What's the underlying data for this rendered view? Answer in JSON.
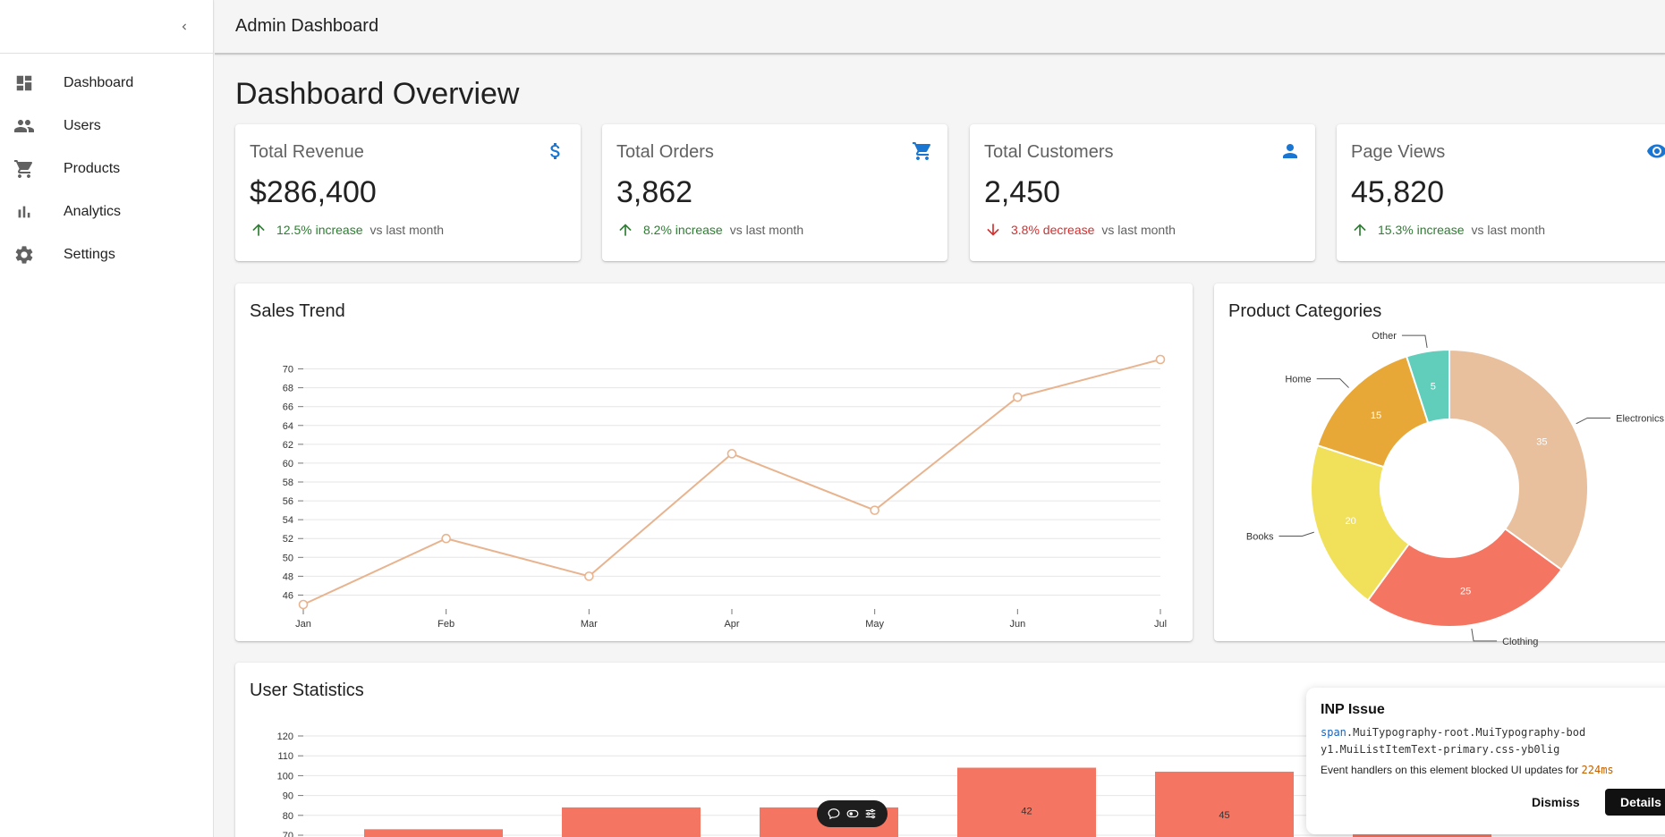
{
  "appbar": {
    "title": "Admin Dashboard"
  },
  "sidebar": {
    "collapse_icon": "chevron-left-icon",
    "items": [
      {
        "label": "Dashboard",
        "icon": "dashboard-icon"
      },
      {
        "label": "Users",
        "icon": "people-icon"
      },
      {
        "label": "Products",
        "icon": "cart-icon"
      },
      {
        "label": "Analytics",
        "icon": "bar-chart-icon"
      },
      {
        "label": "Settings",
        "icon": "gear-icon"
      }
    ]
  },
  "page": {
    "title": "Dashboard Overview"
  },
  "stats": [
    {
      "title": "Total Revenue",
      "value": "$286,400",
      "delta": "12.5% increase",
      "trend": "up",
      "vs": "vs last month",
      "icon": "dollar-icon"
    },
    {
      "title": "Total Orders",
      "value": "3,862",
      "delta": "8.2% increase",
      "trend": "up",
      "vs": "vs last month",
      "icon": "cart-icon"
    },
    {
      "title": "Total Customers",
      "value": "2,450",
      "delta": "3.8% decrease",
      "trend": "down",
      "vs": "vs last month",
      "icon": "person-icon"
    },
    {
      "title": "Page Views",
      "value": "45,820",
      "delta": "15.3% increase",
      "trend": "up",
      "vs": "vs last month",
      "icon": "eye-icon"
    }
  ],
  "colors": {
    "accent": "#1976d2",
    "up": "#2e7d32",
    "down": "#d32f2f",
    "line": "#e8b48f",
    "bar": "#f47561"
  },
  "chart_data": [
    {
      "type": "line",
      "title": "Sales Trend",
      "categories": [
        "Jan",
        "Feb",
        "Mar",
        "Apr",
        "May",
        "Jun",
        "Jul"
      ],
      "values": [
        45,
        52,
        48,
        61,
        55,
        67,
        71
      ],
      "ylim": [
        45,
        71
      ],
      "yticks": [
        46,
        48,
        50,
        52,
        54,
        56,
        58,
        60,
        62,
        64,
        66,
        68,
        70
      ],
      "grid": true,
      "color": "#e8b48f"
    },
    {
      "type": "pie",
      "title": "Product Categories",
      "donut": true,
      "slices": [
        {
          "label": "Electronics",
          "value": 35,
          "color": "#e8c09e"
        },
        {
          "label": "Clothing",
          "value": 25,
          "color": "#f47561"
        },
        {
          "label": "Books",
          "value": 20,
          "color": "#f0e05a"
        },
        {
          "label": "Home",
          "value": 15,
          "color": "#e8a838"
        },
        {
          "label": "Other",
          "value": 5,
          "color": "#61cdbb"
        }
      ]
    },
    {
      "type": "bar",
      "title": "User Statistics",
      "yticks": [
        70,
        80,
        90,
        100,
        110,
        120
      ],
      "ylim": [
        70,
        120
      ],
      "grid": true,
      "color": "#f47561",
      "bars": [
        {
          "value": 73,
          "label": ""
        },
        {
          "value": 84,
          "label": ""
        },
        {
          "value": 84,
          "label": ""
        },
        {
          "value": 104,
          "label": "42"
        },
        {
          "value": 102,
          "label": "45"
        },
        {
          "value": 73,
          "label": ""
        }
      ]
    }
  ],
  "inp_panel": {
    "title": "INP Issue",
    "selector_tag": "span",
    "selector_rest": ".MuiTypography-root.MuiTypography-body1.MuiListItemText-primary.css-yb0lig",
    "message": "Event handlers on this element blocked UI updates for",
    "duration": "224ms",
    "dismiss_label": "Dismiss",
    "details_label": "Details"
  },
  "float_toolbar": {
    "icons": [
      "comment-icon",
      "toggle-icon",
      "settings-sliders-icon"
    ]
  }
}
